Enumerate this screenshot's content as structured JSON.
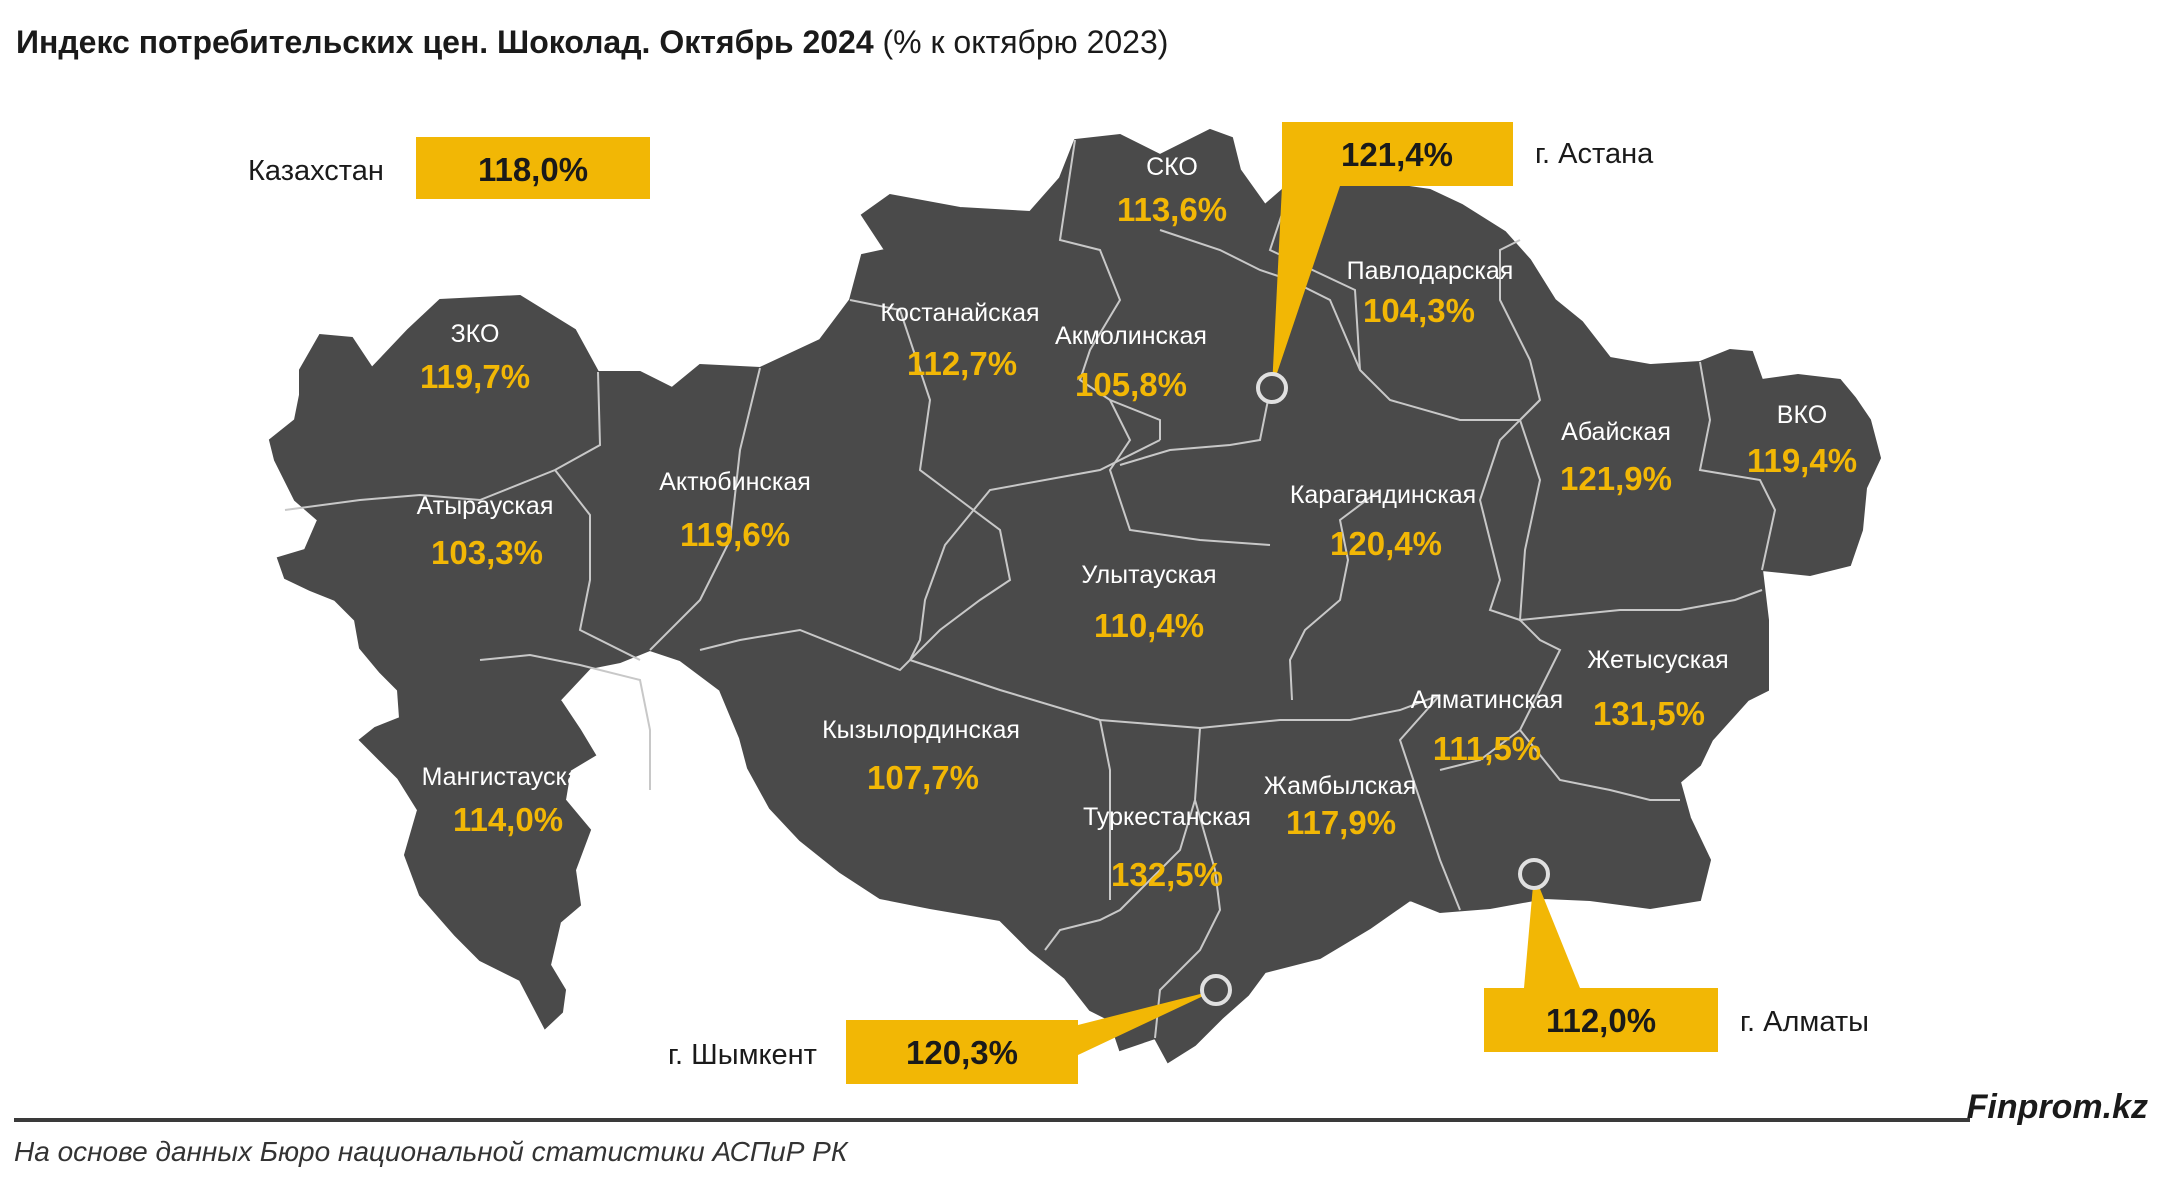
{
  "title": {
    "bold": "Индекс потребительских цен. Шоколад. Октябрь 2024",
    "normal": "(% к октябрю 2023)"
  },
  "national": {
    "label": "Казахстан",
    "value": "118,0%"
  },
  "regions": [
    {
      "id": "zko",
      "name": "ЗКО",
      "value": "119,7%"
    },
    {
      "id": "atyrau",
      "name": "Атырауская",
      "value": "103,3%"
    },
    {
      "id": "aktobe",
      "name": "Актюбинская",
      "value": "119,6%"
    },
    {
      "id": "mangystau",
      "name": "Мангистауская",
      "value": "114,0%"
    },
    {
      "id": "kostanay",
      "name": "Костанайская",
      "value": "112,7%"
    },
    {
      "id": "sko",
      "name": "СКО",
      "value": "113,6%"
    },
    {
      "id": "akmola",
      "name": "Акмолинская",
      "value": "105,8%"
    },
    {
      "id": "pavlodar",
      "name": "Павлодарская",
      "value": "104,3%"
    },
    {
      "id": "abai",
      "name": "Абайская",
      "value": "121,9%"
    },
    {
      "id": "vko",
      "name": "ВКО",
      "value": "119,4%"
    },
    {
      "id": "karaganda",
      "name": "Карагандинская",
      "value": "120,4%"
    },
    {
      "id": "ulytau",
      "name": "Улытауская",
      "value": "110,4%"
    },
    {
      "id": "kyzylorda",
      "name": "Кызылординская",
      "value": "107,7%"
    },
    {
      "id": "turkestan",
      "name": "Туркестанская",
      "value": "132,5%"
    },
    {
      "id": "zhambyl",
      "name": "Жамбылская",
      "value": "117,9%"
    },
    {
      "id": "almaty_obl",
      "name": "Алматинская",
      "value": "111,5%"
    },
    {
      "id": "zhetysu",
      "name": "Жетысуская",
      "value": "131,5%"
    }
  ],
  "cities": [
    {
      "id": "astana",
      "label": "г. Астана",
      "value": "121,4%"
    },
    {
      "id": "shymkent",
      "label": "г. Шымкент",
      "value": "120,3%"
    },
    {
      "id": "almaty",
      "label": "г. Алматы",
      "value": "112,0%"
    }
  ],
  "colors": {
    "map_fill": "#4a4a4a",
    "border": "#c8c8c8",
    "accent": "#f2b705",
    "text_dark": "#1a1a1a"
  },
  "brand": "Finprom.kz",
  "source": "На основе данных Бюро национальной статистики АСПиР РК"
}
